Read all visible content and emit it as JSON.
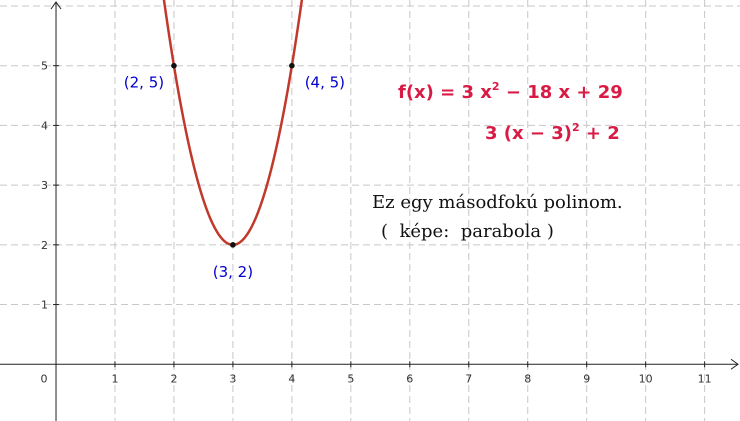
{
  "chart_data": {
    "type": "line",
    "title": "",
    "xlabel": "",
    "ylabel": "",
    "xlim": [
      -0.95,
      11.6
    ],
    "ylim": [
      -0.95,
      6.1
    ],
    "grid": true,
    "x_ticks": [
      "1",
      "2",
      "3",
      "4",
      "5",
      "6",
      "7",
      "8",
      "9",
      "10",
      "11"
    ],
    "y_ticks": [
      "1",
      "2",
      "3",
      "4",
      "5"
    ],
    "origin_label": "0",
    "curve": {
      "a": 3,
      "b": -18,
      "c": 29,
      "color": "#c0392b"
    },
    "points": [
      {
        "x": 2,
        "y": 5,
        "label": "(2, 5)"
      },
      {
        "x": 4,
        "y": 5,
        "label": "(4, 5)"
      },
      {
        "x": 3,
        "y": 2,
        "label": "(3, 2)"
      }
    ]
  },
  "formula": {
    "line1_prefix": "f(x) = 3 x",
    "line1_exp": "2",
    "line1_suffix": " − 18 x + 29",
    "line2_prefix": "3 (x − 3)",
    "line2_exp": "2",
    "line2_suffix": " + 2",
    "color": "#d81b45"
  },
  "note": {
    "line1": "Ez egy másodfokú polinom.",
    "line2": "(  képe:  parabola )"
  }
}
